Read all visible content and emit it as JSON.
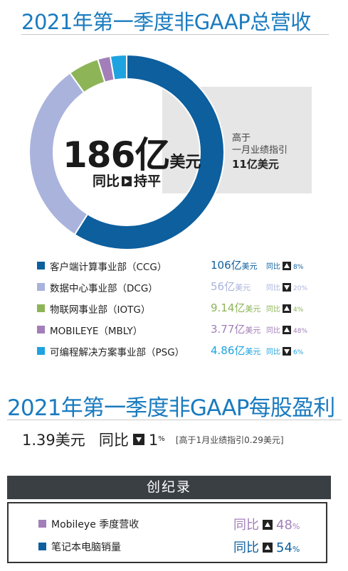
{
  "title_revenue": "2021年第一季度非GAAP总营收",
  "center": {
    "value": "186亿",
    "unit": "美元",
    "yoy_label": "同比",
    "yoy_text": "持平"
  },
  "side_note": {
    "line1": "高于",
    "line2": "一月业绩指引",
    "value": "11亿美元"
  },
  "chart_data": {
    "type": "pie",
    "donut": true,
    "title": "2021年第一季度非GAAP总营收",
    "unit": "亿美元",
    "total": 186,
    "series": [
      {
        "name": "客户端计算事业部（CCG）",
        "value": 106,
        "yoy_direction": "up",
        "yoy_pct": 8,
        "color": "#0d5f9e"
      },
      {
        "name": "数据中心事业部（DCG）",
        "value": 56,
        "yoy_direction": "down",
        "yoy_pct": 20,
        "color": "#a9b3dc"
      },
      {
        "name": "物联网事业部（IOTG）",
        "value": 9.14,
        "yoy_direction": "up",
        "yoy_pct": 4,
        "color": "#8db557"
      },
      {
        "name": "MOBILEYE（MBLY）",
        "value": 3.77,
        "yoy_direction": "up",
        "yoy_pct": 48,
        "color": "#a27fb8"
      },
      {
        "name": "可编程解决方案事业部（PSG）",
        "value": 4.86,
        "yoy_direction": "down",
        "yoy_pct": 6,
        "color": "#1ea3e0"
      }
    ]
  },
  "legend": {
    "yoy_label": "同比",
    "value_unit": "亿美元",
    "items": [
      {
        "name": "客户端计算事业部（CCG）",
        "value": "106",
        "pct": "8%"
      },
      {
        "name": "数据中心事业部（DCG）",
        "value": "56",
        "pct": "20%"
      },
      {
        "name": "物联网事业部（IOTG）",
        "value": "9.14",
        "pct": "4%"
      },
      {
        "name": "MOBILEYE（MBLY）",
        "value": "3.77",
        "pct": "48%"
      },
      {
        "name": "可编程解决方案事业部（PSG）",
        "value": "4.86",
        "pct": "6%"
      }
    ]
  },
  "title_eps": "2021年第一季度非GAAP每股盈利",
  "eps": {
    "value": "1.39美元",
    "yoy_label": "同比",
    "yoy_direction": "down",
    "yoy_num": "1",
    "yoy_pct_sign": "%",
    "note": "[高于1月业绩指引0.29美元]"
  },
  "records": {
    "header": "创纪录",
    "items": [
      {
        "name": "Mobileye 季度营收",
        "yoy_label": "同比",
        "num": "48",
        "pct_sign": "%",
        "color": "#a27fb8",
        "direction": "up"
      },
      {
        "name": "笔记本电脑销量",
        "yoy_label": "同比",
        "num": "54",
        "pct_sign": "%",
        "color": "#0d5f9e",
        "direction": "up"
      }
    ]
  }
}
